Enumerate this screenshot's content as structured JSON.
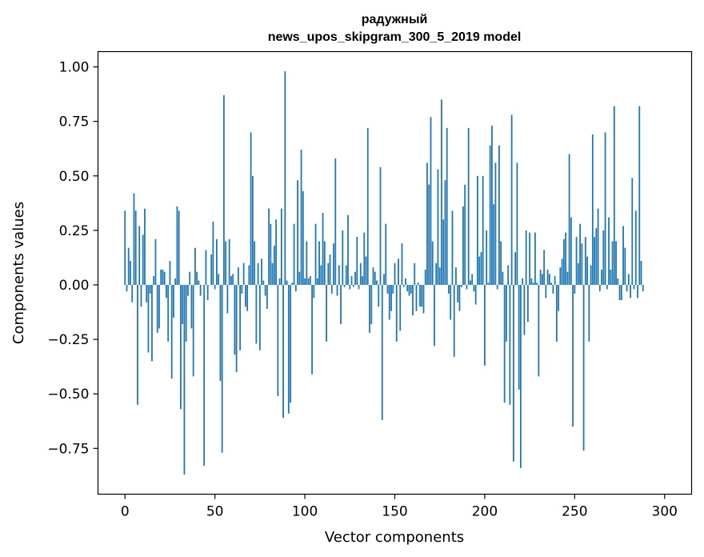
{
  "chart_data": {
    "type": "bar",
    "title_line1": "радужный",
    "title_line2": "news_upos_skipgram_300_5_2019 model",
    "xlabel": "Vector components",
    "ylabel": "Components values",
    "xlim": [
      -15,
      315
    ],
    "ylim": [
      -0.96,
      1.07
    ],
    "xticks": [
      0,
      50,
      100,
      150,
      200,
      250,
      300
    ],
    "xtick_labels": [
      "0",
      "50",
      "100",
      "150",
      "200",
      "250",
      "300"
    ],
    "yticks": [
      -0.75,
      -0.5,
      -0.25,
      0.0,
      0.25,
      0.5,
      0.75,
      1.0
    ],
    "ytick_labels": [
      "−0.75",
      "−0.50",
      "−0.25",
      "0.00",
      "0.25",
      "0.50",
      "0.75",
      "1.00"
    ],
    "bar_color": "#1f77b4",
    "values": [
      0.34,
      -0.03,
      0.17,
      0.11,
      -0.08,
      0.42,
      0.34,
      -0.55,
      0.27,
      -0.1,
      0.23,
      0.35,
      -0.08,
      -0.31,
      -0.04,
      -0.35,
      0.04,
      0.21,
      -0.22,
      -0.2,
      0.07,
      0.07,
      0.06,
      -0.06,
      -0.26,
      0.11,
      -0.43,
      -0.15,
      0.03,
      0.36,
      0.34,
      -0.57,
      -0.18,
      -0.87,
      -0.26,
      -0.05,
      0.06,
      -0.2,
      -0.42,
      0.17,
      0.06,
      0.02,
      -0.05,
      0.0,
      -0.83,
      0.16,
      -0.07,
      0.0,
      0.14,
      0.29,
      -0.02,
      0.21,
      0.05,
      -0.44,
      -0.77,
      0.87,
      0.2,
      -0.13,
      0.21,
      0.04,
      0.05,
      -0.32,
      -0.4,
      0.08,
      -0.3,
      -0.04,
      0.1,
      -0.1,
      -0.12,
      0.09,
      0.7,
      0.5,
      0.2,
      -0.27,
      0.1,
      -0.3,
      0.12,
      0.02,
      -0.05,
      -0.11,
      0.35,
      0.28,
      0.1,
      0.18,
      0.3,
      -0.51,
      0.03,
      0.35,
      -0.61,
      0.98,
      0.02,
      -0.59,
      -0.54,
      0.01,
      0.28,
      -0.03,
      0.48,
      0.06,
      0.62,
      0.43,
      0.03,
      0.2,
      0.03,
      0.04,
      -0.41,
      -0.06,
      0.28,
      0.03,
      0.2,
      0.09,
      0.33,
      0.2,
      -0.26,
      0.1,
      0.14,
      -0.04,
      0.19,
      0.58,
      -0.05,
      0.09,
      -0.18,
      0.25,
      -0.01,
      0.09,
      0.32,
      -0.02,
      0.04,
      -0.01,
      0.06,
      0.22,
      -0.02,
      0.1,
      0.04,
      0.24,
      0.13,
      0.72,
      -0.22,
      -0.18,
      0.08,
      0.06,
      0.02,
      -0.1,
      0.54,
      -0.62,
      0.05,
      0.28,
      -0.04,
      -0.16,
      -0.12,
      -0.04,
      0.1,
      -0.26,
      0.12,
      -0.21,
      0.19,
      -0.01,
      0.03,
      -0.03,
      -0.05,
      -0.04,
      -0.14,
      0.1,
      -0.12,
      0.01,
      -0.1,
      -0.1,
      -0.13,
      0.07,
      0.56,
      0.46,
      0.77,
      0.2,
      -0.28,
      0.1,
      0.53,
      0.08,
      0.85,
      0.3,
      0.48,
      0.72,
      -0.04,
      -0.16,
      0.34,
      -0.33,
      0.08,
      -0.08,
      -0.12,
      -0.01,
      0.36,
      0.46,
      -0.02,
      0.72,
      0.02,
      0.05,
      -0.03,
      -0.09,
      0.5,
      0.13,
      0.15,
      0.5,
      -0.37,
      0.25,
      0.01,
      0.64,
      0.73,
      0.37,
      0.56,
      -0.02,
      0.64,
      0.2,
      0.06,
      -0.54,
      -0.26,
      0.09,
      -0.55,
      0.78,
      -0.81,
      0.15,
      0.56,
      -0.48,
      -0.84,
      0.03,
      -0.23,
      0.25,
      -0.17,
      0.24,
      0.03,
      0.01,
      0.24,
      0.01,
      -0.42,
      0.07,
      0.05,
      0.16,
      -0.06,
      0.07,
      0.05,
      0.01,
      -0.04,
      0.04,
      -0.26,
      -0.12,
      0.08,
      0.12,
      0.21,
      0.24,
      0.06,
      0.6,
      0.31,
      -0.65,
      -0.04,
      0.22,
      0.1,
      0.28,
      0.19,
      -0.76,
      0.22,
      0.13,
      -0.26,
      0.09,
      0.69,
      0.22,
      0.26,
      0.35,
      -0.03,
      0.07,
      0.25,
      0.7,
      -0.02,
      0.31,
      0.07,
      0.2,
      0.82,
      0.2,
      0.03,
      -0.07,
      -0.07,
      0.27,
      0.17,
      -0.03,
      0.05,
      -0.06,
      0.49,
      -0.02,
      0.34,
      -0.06,
      0.82,
      0.11,
      -0.03
    ]
  }
}
